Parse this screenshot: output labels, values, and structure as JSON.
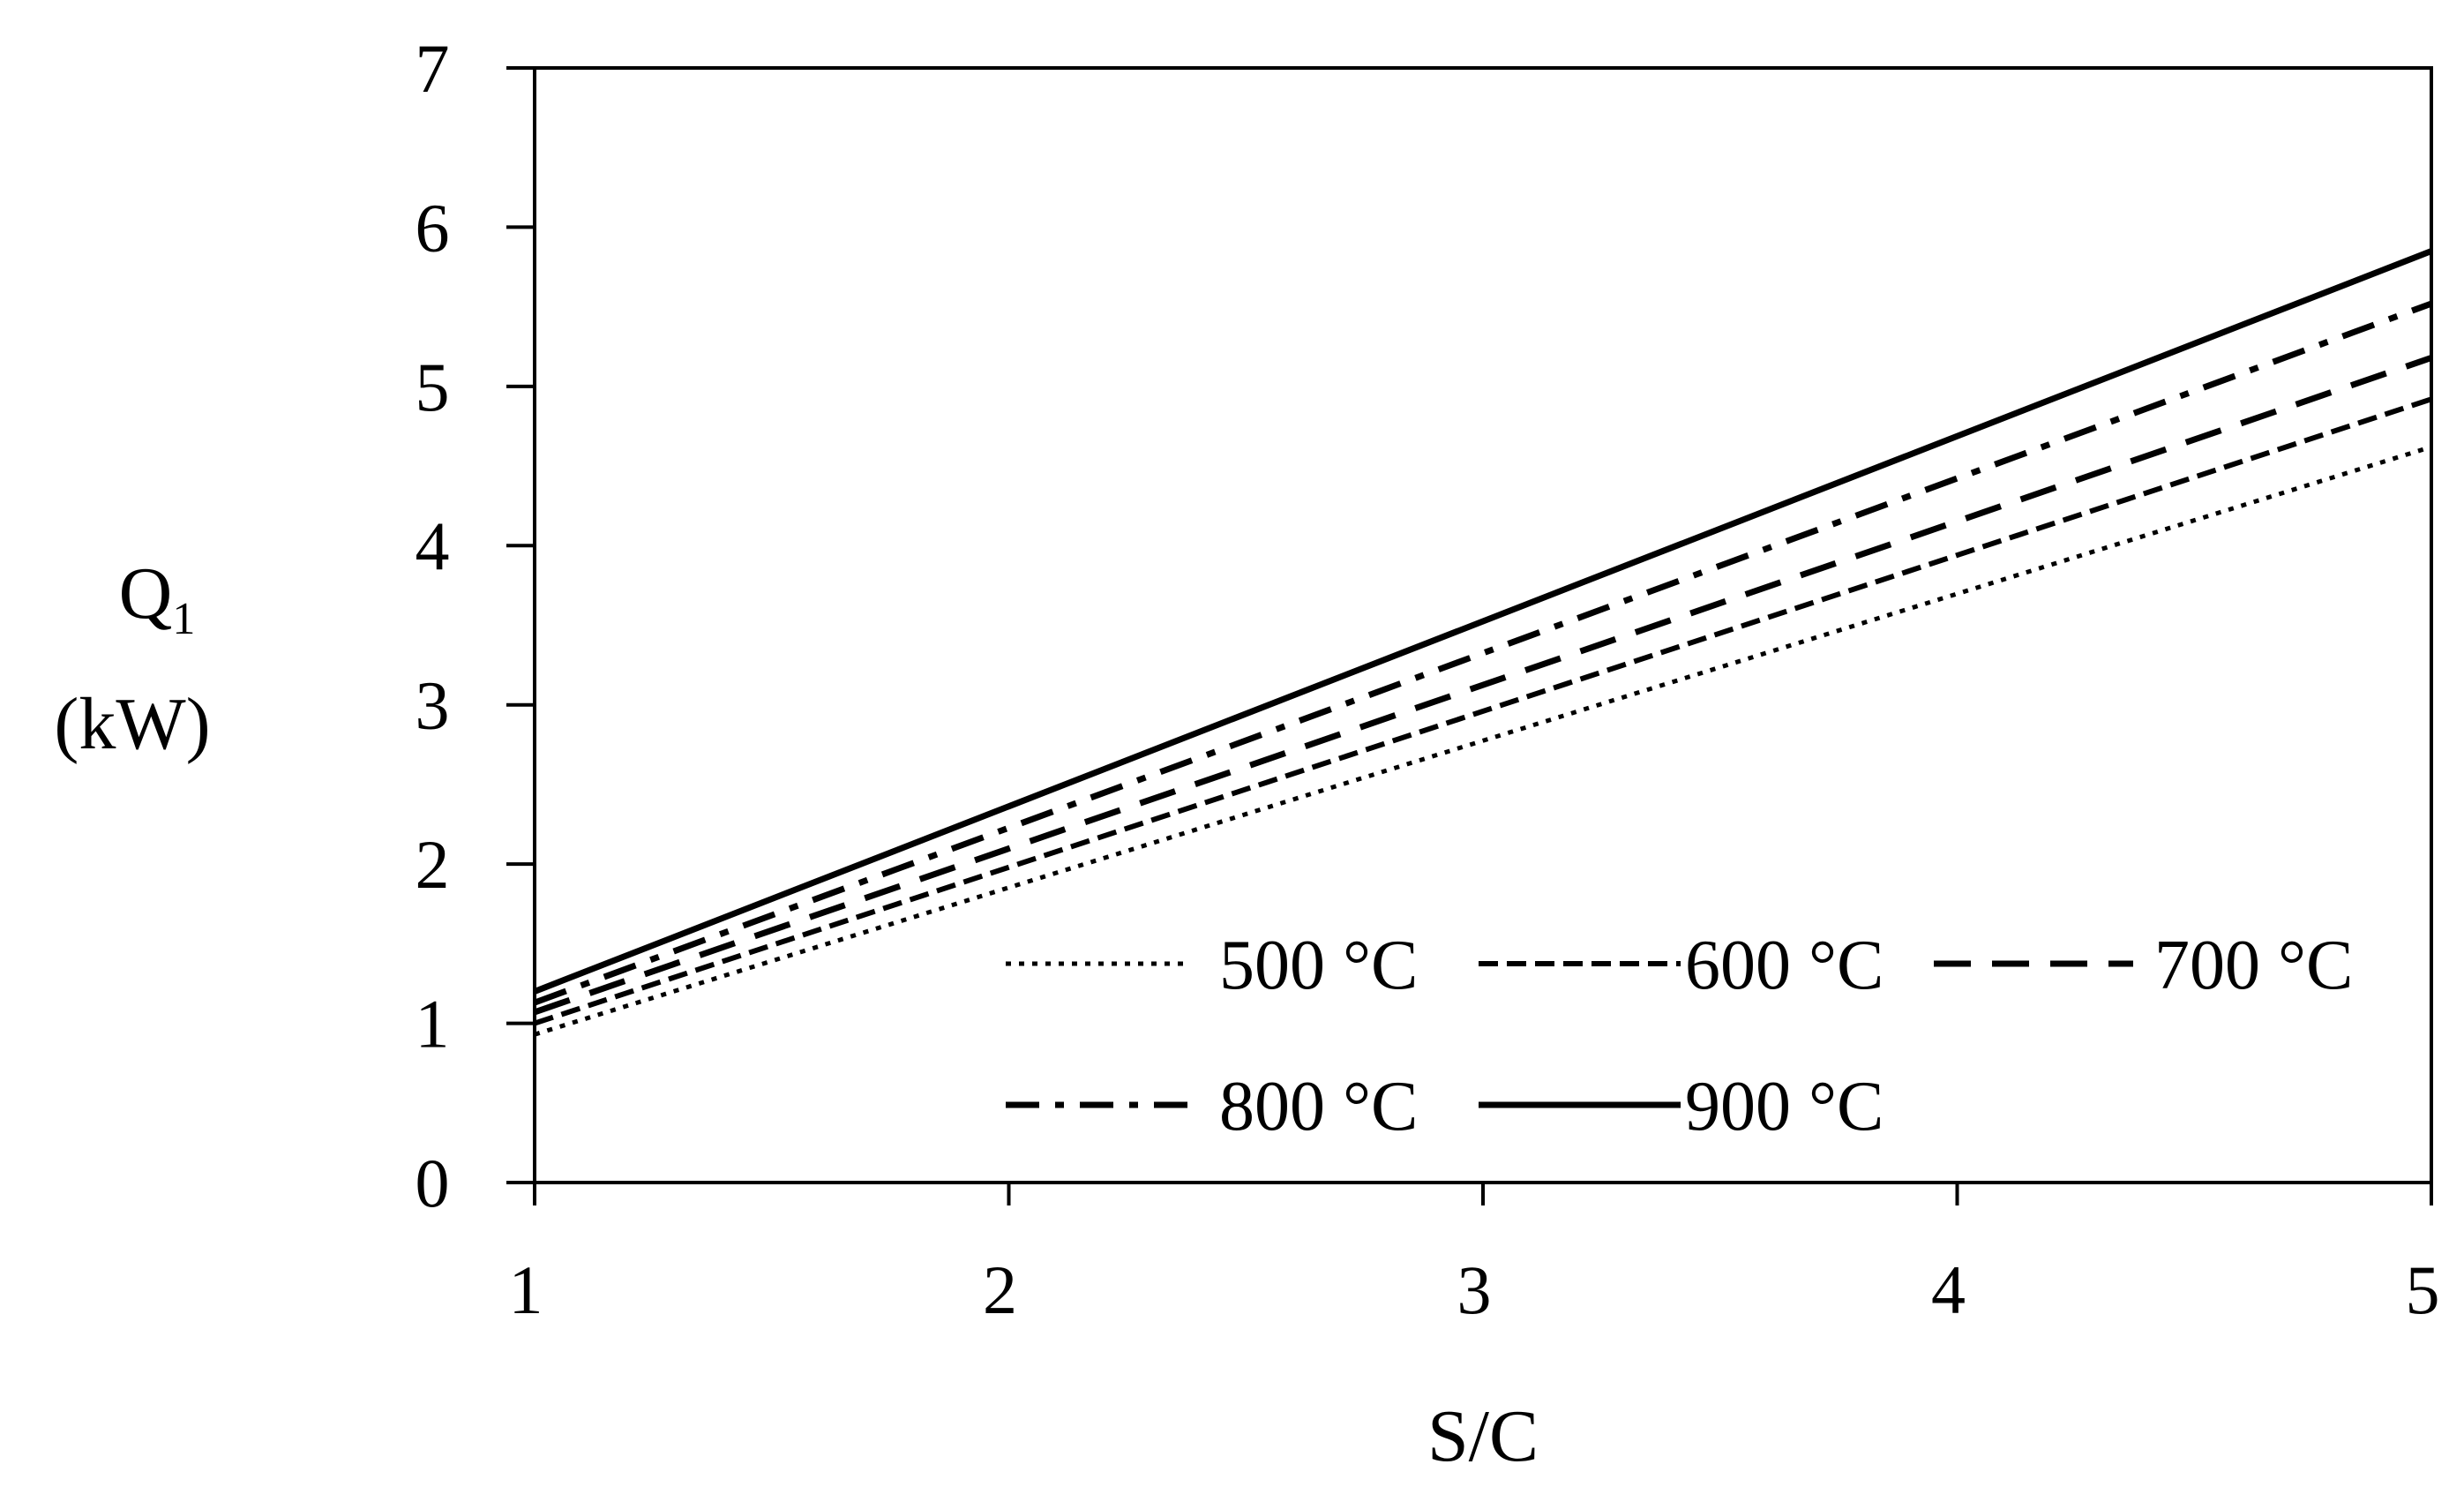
{
  "chart_data": {
    "type": "line",
    "xlabel": "S/C",
    "ylabel_main": "Q",
    "ylabel_sub": "1",
    "ylabel_unit": "(kW)",
    "xlim": [
      1,
      5
    ],
    "ylim": [
      0,
      7
    ],
    "xticks": [
      1,
      2,
      3,
      4,
      5
    ],
    "yticks": [
      0,
      1,
      2,
      3,
      4,
      5,
      6,
      7
    ],
    "grid": false,
    "legend_position": "bottom-right",
    "x": [
      1,
      5
    ],
    "series": [
      {
        "name": "500 °C",
        "style": "dotted",
        "values": [
          0.93,
          4.62
        ]
      },
      {
        "name": "600 °C",
        "style": "short-dash",
        "values": [
          1.0,
          4.92
        ]
      },
      {
        "name": "700 °C",
        "style": "long-dash",
        "values": [
          1.07,
          5.18
        ]
      },
      {
        "name": "800 °C",
        "style": "dash-dot",
        "values": [
          1.13,
          5.52
        ]
      },
      {
        "name": "900 °C",
        "style": "solid",
        "values": [
          1.2,
          5.85
        ]
      }
    ]
  }
}
